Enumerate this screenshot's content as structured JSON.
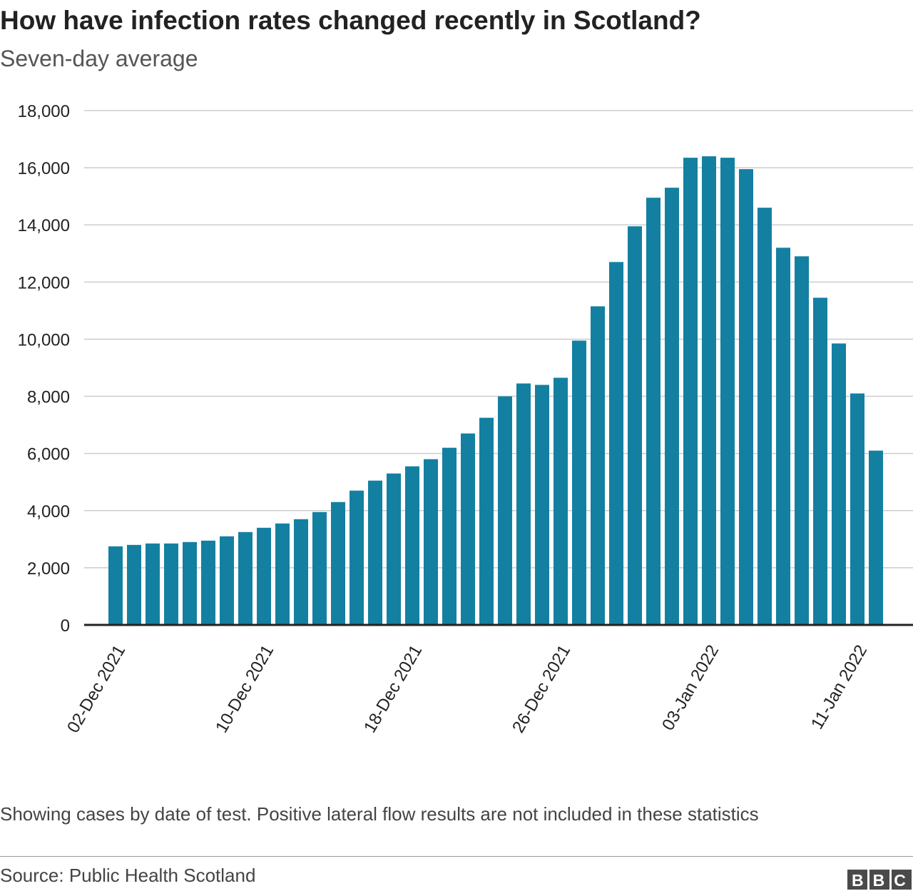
{
  "chart_data": {
    "type": "bar",
    "title": "How have infection rates changed recently in Scotland?",
    "subtitle": "Seven-day average",
    "note": "Showing cases by date of test. Positive lateral flow results are not included in these statistics",
    "source": "Source: Public Health Scotland",
    "logo": "BBC",
    "categories": [
      "02-Dec 2021",
      null,
      null,
      null,
      null,
      null,
      null,
      null,
      "10-Dec 2021",
      null,
      null,
      null,
      null,
      null,
      null,
      null,
      "18-Dec 2021",
      null,
      null,
      null,
      null,
      null,
      null,
      null,
      "26-Dec 2021",
      null,
      null,
      null,
      null,
      null,
      null,
      null,
      "03-Jan 2022",
      null,
      null,
      null,
      null,
      null,
      null,
      null,
      "11-Jan 2022",
      null
    ],
    "values": [
      2750,
      2800,
      2850,
      2850,
      2900,
      2950,
      3100,
      3250,
      3400,
      3550,
      3700,
      3950,
      4300,
      4700,
      5050,
      5300,
      5550,
      5800,
      6200,
      6700,
      7250,
      8000,
      8450,
      8400,
      8650,
      9950,
      11150,
      12700,
      13950,
      14950,
      15300,
      16350,
      16400,
      16350,
      15950,
      14600,
      13200,
      12900,
      11450,
      9850,
      8100,
      6100
    ],
    "color": "#1380a1",
    "ylim": [
      0,
      18000
    ],
    "yticks": [
      0,
      {
        "value": 2000,
        "label": "2,000"
      },
      {
        "value": 4000,
        "label": "4,000"
      },
      {
        "value": 6000,
        "label": "6,000"
      },
      {
        "value": 8000,
        "label": "8,000"
      },
      {
        "value": 10000,
        "label": "10,000"
      },
      {
        "value": 12000,
        "label": "12,000"
      },
      {
        "value": 14000,
        "label": "14,000"
      },
      {
        "value": 16000,
        "label": "16,000"
      },
      {
        "value": 18000,
        "label": "18,000"
      }
    ],
    "grid": true
  }
}
